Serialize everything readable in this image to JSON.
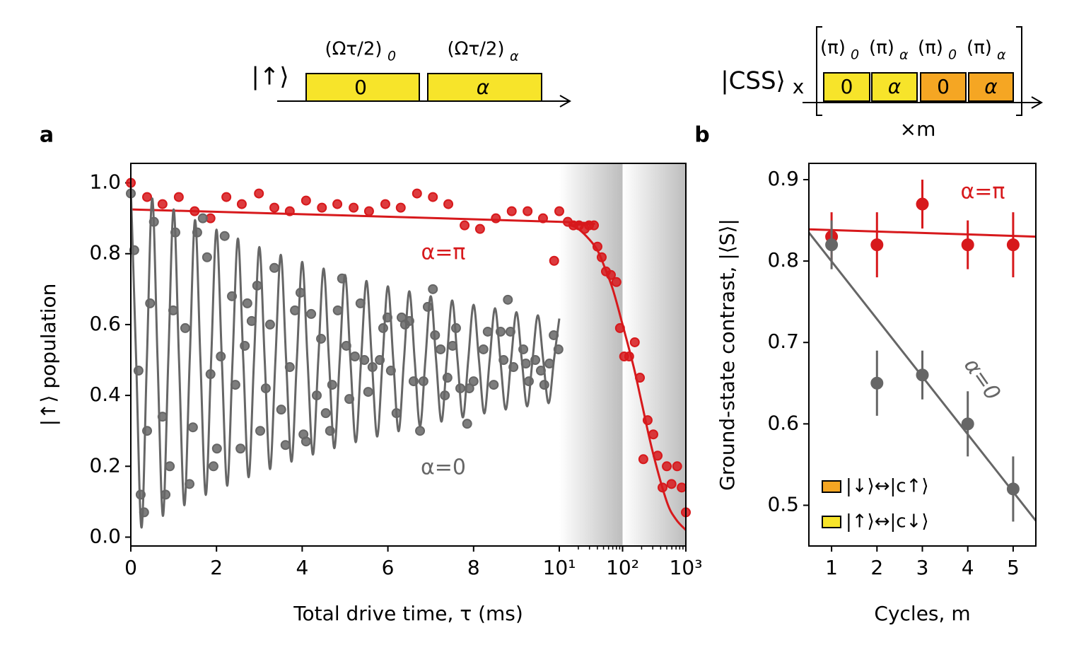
{
  "diagrams": [
    {
      "ket": "|↑⟩",
      "labels": [
        {
          "base": "(Ωτ/2)",
          "sub": "0"
        },
        {
          "base": "(Ωτ/2)",
          "sub": "α"
        }
      ],
      "pulses": [
        "0",
        "α"
      ]
    },
    {
      "ket": "|CSS⟩",
      "ket_sub": "x",
      "labels": [
        {
          "base": "(π)",
          "sub": "0"
        },
        {
          "base": "(π)",
          "sub": "α"
        },
        {
          "base": "(π)",
          "sub": "0"
        },
        {
          "base": "(π)",
          "sub": "α"
        }
      ],
      "pulses": [
        "0",
        "α",
        "0",
        "α"
      ],
      "repeat": "×m"
    }
  ],
  "chart_data": [
    {
      "type": "scatter",
      "panel": "a",
      "xlabel": "Total drive time, τ (ms)",
      "ylabel": "|↑⟩ population",
      "xscale": "linear-log",
      "xbreak": 10,
      "xlim": [
        0,
        1000
      ],
      "xticks": [
        0,
        2,
        4,
        6,
        8,
        {
          "value": 10,
          "label": "10¹"
        },
        {
          "value": 100,
          "label": "10²"
        },
        {
          "value": 1000,
          "label": "10³"
        }
      ],
      "xminorticks": [
        20,
        30,
        40,
        50,
        60,
        70,
        80,
        90,
        200,
        300,
        400,
        500,
        600,
        700,
        800,
        900
      ],
      "ylim": [
        -0.025,
        1.055
      ],
      "yticks": [
        {
          "value": 0,
          "label": "0.0"
        },
        0.2,
        0.4,
        0.6,
        0.8,
        {
          "value": 1,
          "label": "1.0"
        }
      ],
      "series": [
        {
          "name": "α=π",
          "color": "#d7191c",
          "x": [
            0,
            0.38,
            0.74,
            1.12,
            1.49,
            1.86,
            2.23,
            2.59,
            2.99,
            3.35,
            3.71,
            4.09,
            4.46,
            4.82,
            5.2,
            5.56,
            5.94,
            6.3,
            6.68,
            7.05,
            7.41,
            7.79,
            8.15,
            8.52,
            8.89,
            9.26,
            9.62,
            9.88,
            10,
            13.6,
            16.7,
            20.5,
            25.2,
            29.5,
            35.3,
            40.1,
            46.8,
            54.6,
            65.4,
            80,
            91,
            106,
            127,
            156,
            188,
            213,
            249,
            306,
            358,
            428,
            500,
            593,
            729,
            860,
            1000
          ],
          "values": [
            1.0,
            0.96,
            0.94,
            0.96,
            0.92,
            0.9,
            0.96,
            0.94,
            0.97,
            0.93,
            0.92,
            0.95,
            0.93,
            0.94,
            0.93,
            0.92,
            0.94,
            0.93,
            0.97,
            0.96,
            0.94,
            0.88,
            0.87,
            0.9,
            0.92,
            0.92,
            0.9,
            0.78,
            0.92,
            0.89,
            0.88,
            0.88,
            0.87,
            0.88,
            0.88,
            0.82,
            0.79,
            0.75,
            0.74,
            0.72,
            0.59,
            0.51,
            0.51,
            0.55,
            0.45,
            0.22,
            0.33,
            0.29,
            0.23,
            0.14,
            0.2,
            0.15,
            0.2,
            0.14,
            0.07
          ],
          "fit": {
            "x": [
              0,
              10,
              15,
              20,
              30,
              40,
              50,
              70,
              100,
              150,
              200,
              300,
              500,
              700,
              1000
            ],
            "values": [
              0.925,
              0.89,
              0.88,
              0.87,
              0.84,
              0.81,
              0.77,
              0.7,
              0.6,
              0.48,
              0.38,
              0.24,
              0.1,
              0.05,
              0.02
            ]
          }
        },
        {
          "name": "α=0",
          "color": "#666666",
          "x": [
            0,
            0.08,
            0.18,
            0.23,
            0.31,
            0.38,
            0.45,
            0.54,
            0.74,
            0.81,
            0.91,
            0.99,
            1.04,
            1.27,
            1.37,
            1.45,
            1.55,
            1.68,
            1.78,
            1.86,
            1.93,
            2.01,
            2.1,
            2.19,
            2.36,
            2.44,
            2.56,
            2.66,
            2.72,
            2.82,
            2.95,
            3.02,
            3.15,
            3.25,
            3.35,
            3.51,
            3.61,
            3.71,
            3.83,
            3.96,
            4.03,
            4.09,
            4.21,
            4.34,
            4.44,
            4.55,
            4.65,
            4.7,
            4.83,
            4.93,
            5.03,
            5.1,
            5.23,
            5.36,
            5.45,
            5.54,
            5.64,
            5.81,
            5.89,
            5.99,
            6.07,
            6.2,
            6.32,
            6.4,
            6.5,
            6.6,
            6.75,
            6.83,
            6.93,
            7.05,
            7.1,
            7.23,
            7.33,
            7.39,
            7.51,
            7.59,
            7.69,
            7.85,
            7.9,
            8.0,
            8.23,
            8.33,
            8.47,
            8.63,
            8.7,
            8.8,
            8.86,
            8.93,
            9.16,
            9.22,
            9.29,
            9.44,
            9.57,
            9.65,
            9.77,
            9.87,
            9.98
          ],
          "values": [
            0.97,
            0.81,
            0.47,
            0.12,
            0.07,
            0.3,
            0.66,
            0.89,
            0.34,
            0.12,
            0.2,
            0.64,
            0.86,
            0.59,
            0.15,
            0.31,
            0.86,
            0.9,
            0.79,
            0.46,
            0.2,
            0.25,
            0.51,
            0.85,
            0.68,
            0.43,
            0.25,
            0.54,
            0.66,
            0.61,
            0.71,
            0.3,
            0.42,
            0.6,
            0.76,
            0.36,
            0.26,
            0.48,
            0.64,
            0.69,
            0.29,
            0.27,
            0.63,
            0.4,
            0.56,
            0.35,
            0.3,
            0.43,
            0.64,
            0.73,
            0.54,
            0.39,
            0.51,
            0.66,
            0.5,
            0.41,
            0.48,
            0.5,
            0.59,
            0.62,
            0.47,
            0.35,
            0.62,
            0.6,
            0.61,
            0.44,
            0.3,
            0.44,
            0.65,
            0.7,
            0.57,
            0.53,
            0.4,
            0.45,
            0.54,
            0.59,
            0.42,
            0.32,
            0.42,
            0.44,
            0.53,
            0.58,
            0.43,
            0.58,
            0.5,
            0.67,
            0.58,
            0.48,
            0.53,
            0.49,
            0.44,
            0.5,
            0.47,
            0.43,
            0.49,
            0.57,
            0.53
          ],
          "fit": {
            "x": [
              0,
              0.125,
              0.25,
              0.375,
              0.5,
              0.625,
              0.75,
              0.875,
              1,
              1.125,
              1.25,
              1.375,
              1.5,
              1.625,
              1.75,
              1.875,
              2,
              2.125,
              2.25,
              2.375,
              2.5,
              2.625,
              2.75,
              2.875,
              3,
              3.125,
              3.25,
              3.375,
              3.5,
              3.625,
              3.75,
              3.875,
              4,
              4.125,
              4.25,
              4.375,
              4.5,
              4.625,
              4.75,
              4.875,
              5,
              5.125,
              5.25,
              5.375,
              5.5,
              5.625,
              5.75,
              5.875,
              6,
              6.125,
              6.25,
              6.375,
              6.5,
              6.625,
              6.75,
              6.875,
              7,
              7.125,
              7.25,
              7.375,
              7.5,
              7.625,
              7.75,
              7.875,
              8,
              8.125,
              8.25,
              8.375,
              8.5,
              8.625,
              8.75,
              8.875,
              9,
              9.125,
              9.25,
              9.375,
              9.5,
              9.625,
              9.75,
              9.875,
              10
            ],
            "values": [
              0.99,
              0.5,
              0.027,
              0.5,
              0.956,
              0.5,
              0.06,
              0.5,
              0.925,
              0.5,
              0.09,
              0.5,
              0.895,
              0.5,
              0.119,
              0.5,
              0.868,
              0.5,
              0.145,
              0.5,
              0.843,
              0.5,
              0.169,
              0.5,
              0.819,
              0.5,
              0.192,
              0.5,
              0.797,
              0.5,
              0.213,
              0.5,
              0.777,
              0.5,
              0.233,
              0.5,
              0.758,
              0.5,
              0.251,
              0.5,
              0.74,
              0.5,
              0.268,
              0.5,
              0.723,
              0.5,
              0.284,
              0.5,
              0.708,
              0.5,
              0.299,
              0.5,
              0.694,
              0.5,
              0.313,
              0.5,
              0.68,
              0.5,
              0.326,
              0.5,
              0.668,
              0.5,
              0.338,
              0.5,
              0.656,
              0.5,
              0.349,
              0.5,
              0.646,
              0.5,
              0.36,
              0.5,
              0.635,
              0.5,
              0.369,
              0.5,
              0.626,
              0.5,
              0.378,
              0.5,
              0.617
            ]
          }
        }
      ]
    },
    {
      "type": "errorbar",
      "panel": "b",
      "xlabel": "Cycles, m",
      "ylabel": "Ground-state contrast, |⟨S⟩|",
      "xlim": [
        0.5,
        5.5
      ],
      "xticks": [
        1,
        2,
        3,
        4,
        5
      ],
      "ylim": [
        0.45,
        0.92
      ],
      "yticks": [
        0.5,
        0.6,
        0.7,
        0.8,
        0.9
      ],
      "x": [
        1,
        2,
        3,
        4,
        5
      ],
      "series": [
        {
          "name": "α=π",
          "color": "#d7191c",
          "values": [
            0.83,
            0.82,
            0.87,
            0.82,
            0.82
          ],
          "errors": [
            0.03,
            0.04,
            0.03,
            0.03,
            0.04
          ],
          "fit": {
            "x": [
              0.5,
              5.5
            ],
            "values": [
              0.839,
              0.83
            ]
          }
        },
        {
          "name": "α=0",
          "color": "#666666",
          "values": [
            0.82,
            0.65,
            0.66,
            0.6,
            0.52
          ],
          "errors": [
            0.03,
            0.04,
            0.03,
            0.04,
            0.04
          ],
          "fit": {
            "x": [
              0.5,
              5.5
            ],
            "values": [
              0.835,
              0.481
            ]
          }
        }
      ],
      "legend": [
        {
          "label": "|↓⟩↔|c↑⟩",
          "color": "#f5a623"
        },
        {
          "label": "|↑⟩↔|c↓⟩",
          "color": "#f7e42a"
        }
      ]
    }
  ]
}
